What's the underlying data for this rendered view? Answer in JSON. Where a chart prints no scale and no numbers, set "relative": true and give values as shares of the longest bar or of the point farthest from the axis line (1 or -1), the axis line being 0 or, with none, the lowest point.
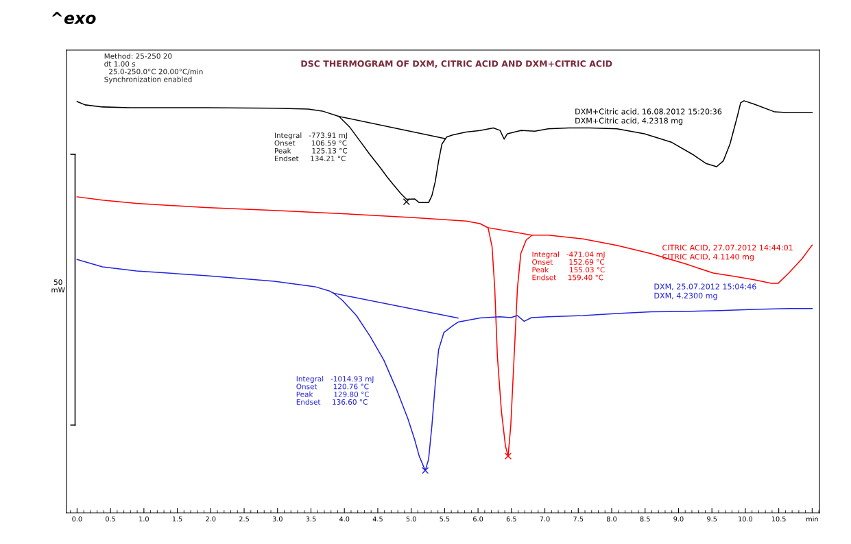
{
  "chart_data": {
    "type": "line",
    "title": "DSC THERMOGRAM OF DXM, CITRIC ACID AND DXM+CITRIC ACID",
    "relative": true,
    "grid": false,
    "legend": false,
    "marker": "none",
    "line_style": "solid",
    "xlim": [
      -0.16,
      11.11
    ],
    "xticks": [
      {
        "value": 0,
        "label": "0.0"
      },
      0.5,
      {
        "value": 1,
        "label": "1.0"
      },
      1.5,
      {
        "value": 2,
        "label": "2.0"
      },
      2.5,
      {
        "value": 3,
        "label": "3.0"
      },
      3.5,
      {
        "value": 4,
        "label": "4.0"
      },
      4.5,
      {
        "value": 5,
        "label": "5.0"
      },
      5.5,
      {
        "value": 6,
        "label": "6.0"
      },
      6.5,
      {
        "value": 7,
        "label": "7.0"
      },
      7.5,
      {
        "value": 8,
        "label": "8.0"
      },
      8.5,
      {
        "value": 9,
        "label": "9.0"
      },
      9.5,
      {
        "value": 10,
        "label": "10.0"
      },
      10.5,
      {
        "value": 11,
        "label": "min"
      }
    ],
    "annotations": [
      "^exo",
      "Method: 25-250 20\ndt 1.00 s\n  25.0-250.0°C 20.00°C/min\nSynchronization enabled",
      "Integral   -773.91 mJ\nOnset       106.59 °C\nPeak         125.13 °C\nEndset     134.21 °C",
      "Integral   -471.04 mJ\nOnset       152.69 °C\nPeak         155.03 °C\nEndset     159.40 °C",
      "Integral   -1014.93 mJ\nOnset       120.76 °C\nPeak         129.80 °C\nEndset     136.60 °C",
      "50\nmW"
    ],
    "series": [
      {
        "name": "DXM+Citric acid, 16.08.2012 15:20:36\nDXM+Citric acid, 4.2318 mg",
        "color": "#000000",
        "x": [
          0.0,
          0.12,
          0.38,
          0.79,
          1.92,
          2.95,
          3.46,
          3.67,
          3.92,
          4.08,
          4.23,
          4.38,
          4.54,
          4.64,
          4.74,
          4.85,
          4.93,
          5.05,
          5.12,
          5.26,
          5.31,
          5.36,
          5.41,
          5.46,
          5.53,
          5.62,
          5.82,
          6.03,
          6.23,
          6.33,
          6.39,
          6.44,
          6.64,
          6.85,
          7.05,
          7.36,
          7.67,
          8.08,
          8.49,
          8.9,
          9.21,
          9.41,
          9.57,
          9.67,
          9.77,
          9.88,
          9.93,
          9.98,
          10.13,
          10.44,
          10.65,
          11.0
        ],
        "values": [
          0.998,
          0.99,
          0.985,
          0.983,
          0.983,
          0.982,
          0.98,
          0.975,
          0.962,
          0.936,
          0.903,
          0.87,
          0.837,
          0.815,
          0.795,
          0.774,
          0.761,
          0.762,
          0.753,
          0.753,
          0.77,
          0.804,
          0.854,
          0.895,
          0.912,
          0.917,
          0.924,
          0.928,
          0.934,
          0.928,
          0.907,
          0.92,
          0.928,
          0.926,
          0.932,
          0.934,
          0.934,
          0.932,
          0.92,
          0.899,
          0.87,
          0.848,
          0.84,
          0.854,
          0.895,
          0.962,
          0.995,
          1.0,
          0.992,
          0.973,
          0.971,
          0.971
        ]
      },
      {
        "name": "CITRIC ACID, 27.07.2012 14:44:01\nCITRIC ACID, 4.1140 mg",
        "color": "#ff0000",
        "x": [
          0.0,
          0.38,
          0.89,
          1.92,
          2.95,
          3.97,
          5.0,
          5.82,
          6.03,
          6.15,
          6.21,
          6.25,
          6.29,
          6.35,
          6.41,
          6.45,
          6.49,
          6.54,
          6.59,
          6.64,
          6.72,
          6.81,
          7.05,
          7.57,
          8.08,
          8.59,
          9.11,
          9.52,
          9.83,
          10.13,
          10.39,
          10.49,
          10.65,
          10.85,
          11.0
        ],
        "values": [
          0.767,
          0.759,
          0.751,
          0.741,
          0.734,
          0.726,
          0.717,
          0.708,
          0.702,
          0.692,
          0.646,
          0.546,
          0.379,
          0.247,
          0.163,
          0.138,
          0.212,
          0.379,
          0.546,
          0.629,
          0.662,
          0.674,
          0.674,
          0.665,
          0.649,
          0.629,
          0.604,
          0.582,
          0.574,
          0.566,
          0.557,
          0.557,
          0.582,
          0.617,
          0.65
        ]
      },
      {
        "name": "DXM, 25.07.2012 15:04:46\nDXM, 4.2300 mg",
        "color": "#2222dd",
        "x": [
          0.0,
          0.38,
          0.89,
          1.92,
          2.95,
          3.56,
          3.77,
          3.84,
          3.97,
          4.18,
          4.38,
          4.59,
          4.79,
          4.95,
          5.05,
          5.12,
          5.21,
          5.26,
          5.31,
          5.36,
          5.41,
          5.49,
          5.62,
          5.7,
          6.03,
          6.33,
          6.49,
          6.59,
          6.69,
          6.8,
          7.05,
          7.57,
          8.08,
          8.59,
          9.11,
          9.62,
          10.13,
          10.65,
          11.0
        ],
        "values": [
          0.615,
          0.597,
          0.587,
          0.576,
          0.562,
          0.549,
          0.539,
          0.533,
          0.516,
          0.479,
          0.43,
          0.371,
          0.296,
          0.229,
          0.179,
          0.138,
          0.103,
          0.13,
          0.212,
          0.313,
          0.396,
          0.438,
          0.454,
          0.463,
          0.473,
          0.476,
          0.474,
          0.479,
          0.465,
          0.474,
          0.476,
          0.479,
          0.484,
          0.488,
          0.489,
          0.491,
          0.494,
          0.496,
          0.496
        ]
      },
      {
        "color": "#000000",
        "x": [
          3.92,
          5.51
        ],
        "values": [
          0.962,
          0.908
        ]
      },
      {
        "color": "#ff0000",
        "x": [
          6.15,
          6.81
        ],
        "values": [
          0.692,
          0.674
        ]
      },
      {
        "color": "#2222dd",
        "x": [
          3.84,
          5.7
        ],
        "values": [
          0.533,
          0.473
        ]
      },
      {
        "color": "#000000",
        "x": [
          -0.03,
          -0.03
        ],
        "values": [
          0.87,
          0.213
        ]
      },
      {
        "type": "scatter",
        "marker": "cross",
        "color": "#000000",
        "x": [
          4.93
        ],
        "values": [
          0.755
        ]
      },
      {
        "type": "scatter",
        "marker": "cross",
        "color": "#ff0000",
        "x": [
          6.45
        ],
        "values": [
          0.138
        ]
      },
      {
        "type": "scatter",
        "marker": "cross",
        "color": "#2222dd",
        "x": [
          5.21
        ],
        "values": [
          0.103
        ]
      }
    ]
  }
}
